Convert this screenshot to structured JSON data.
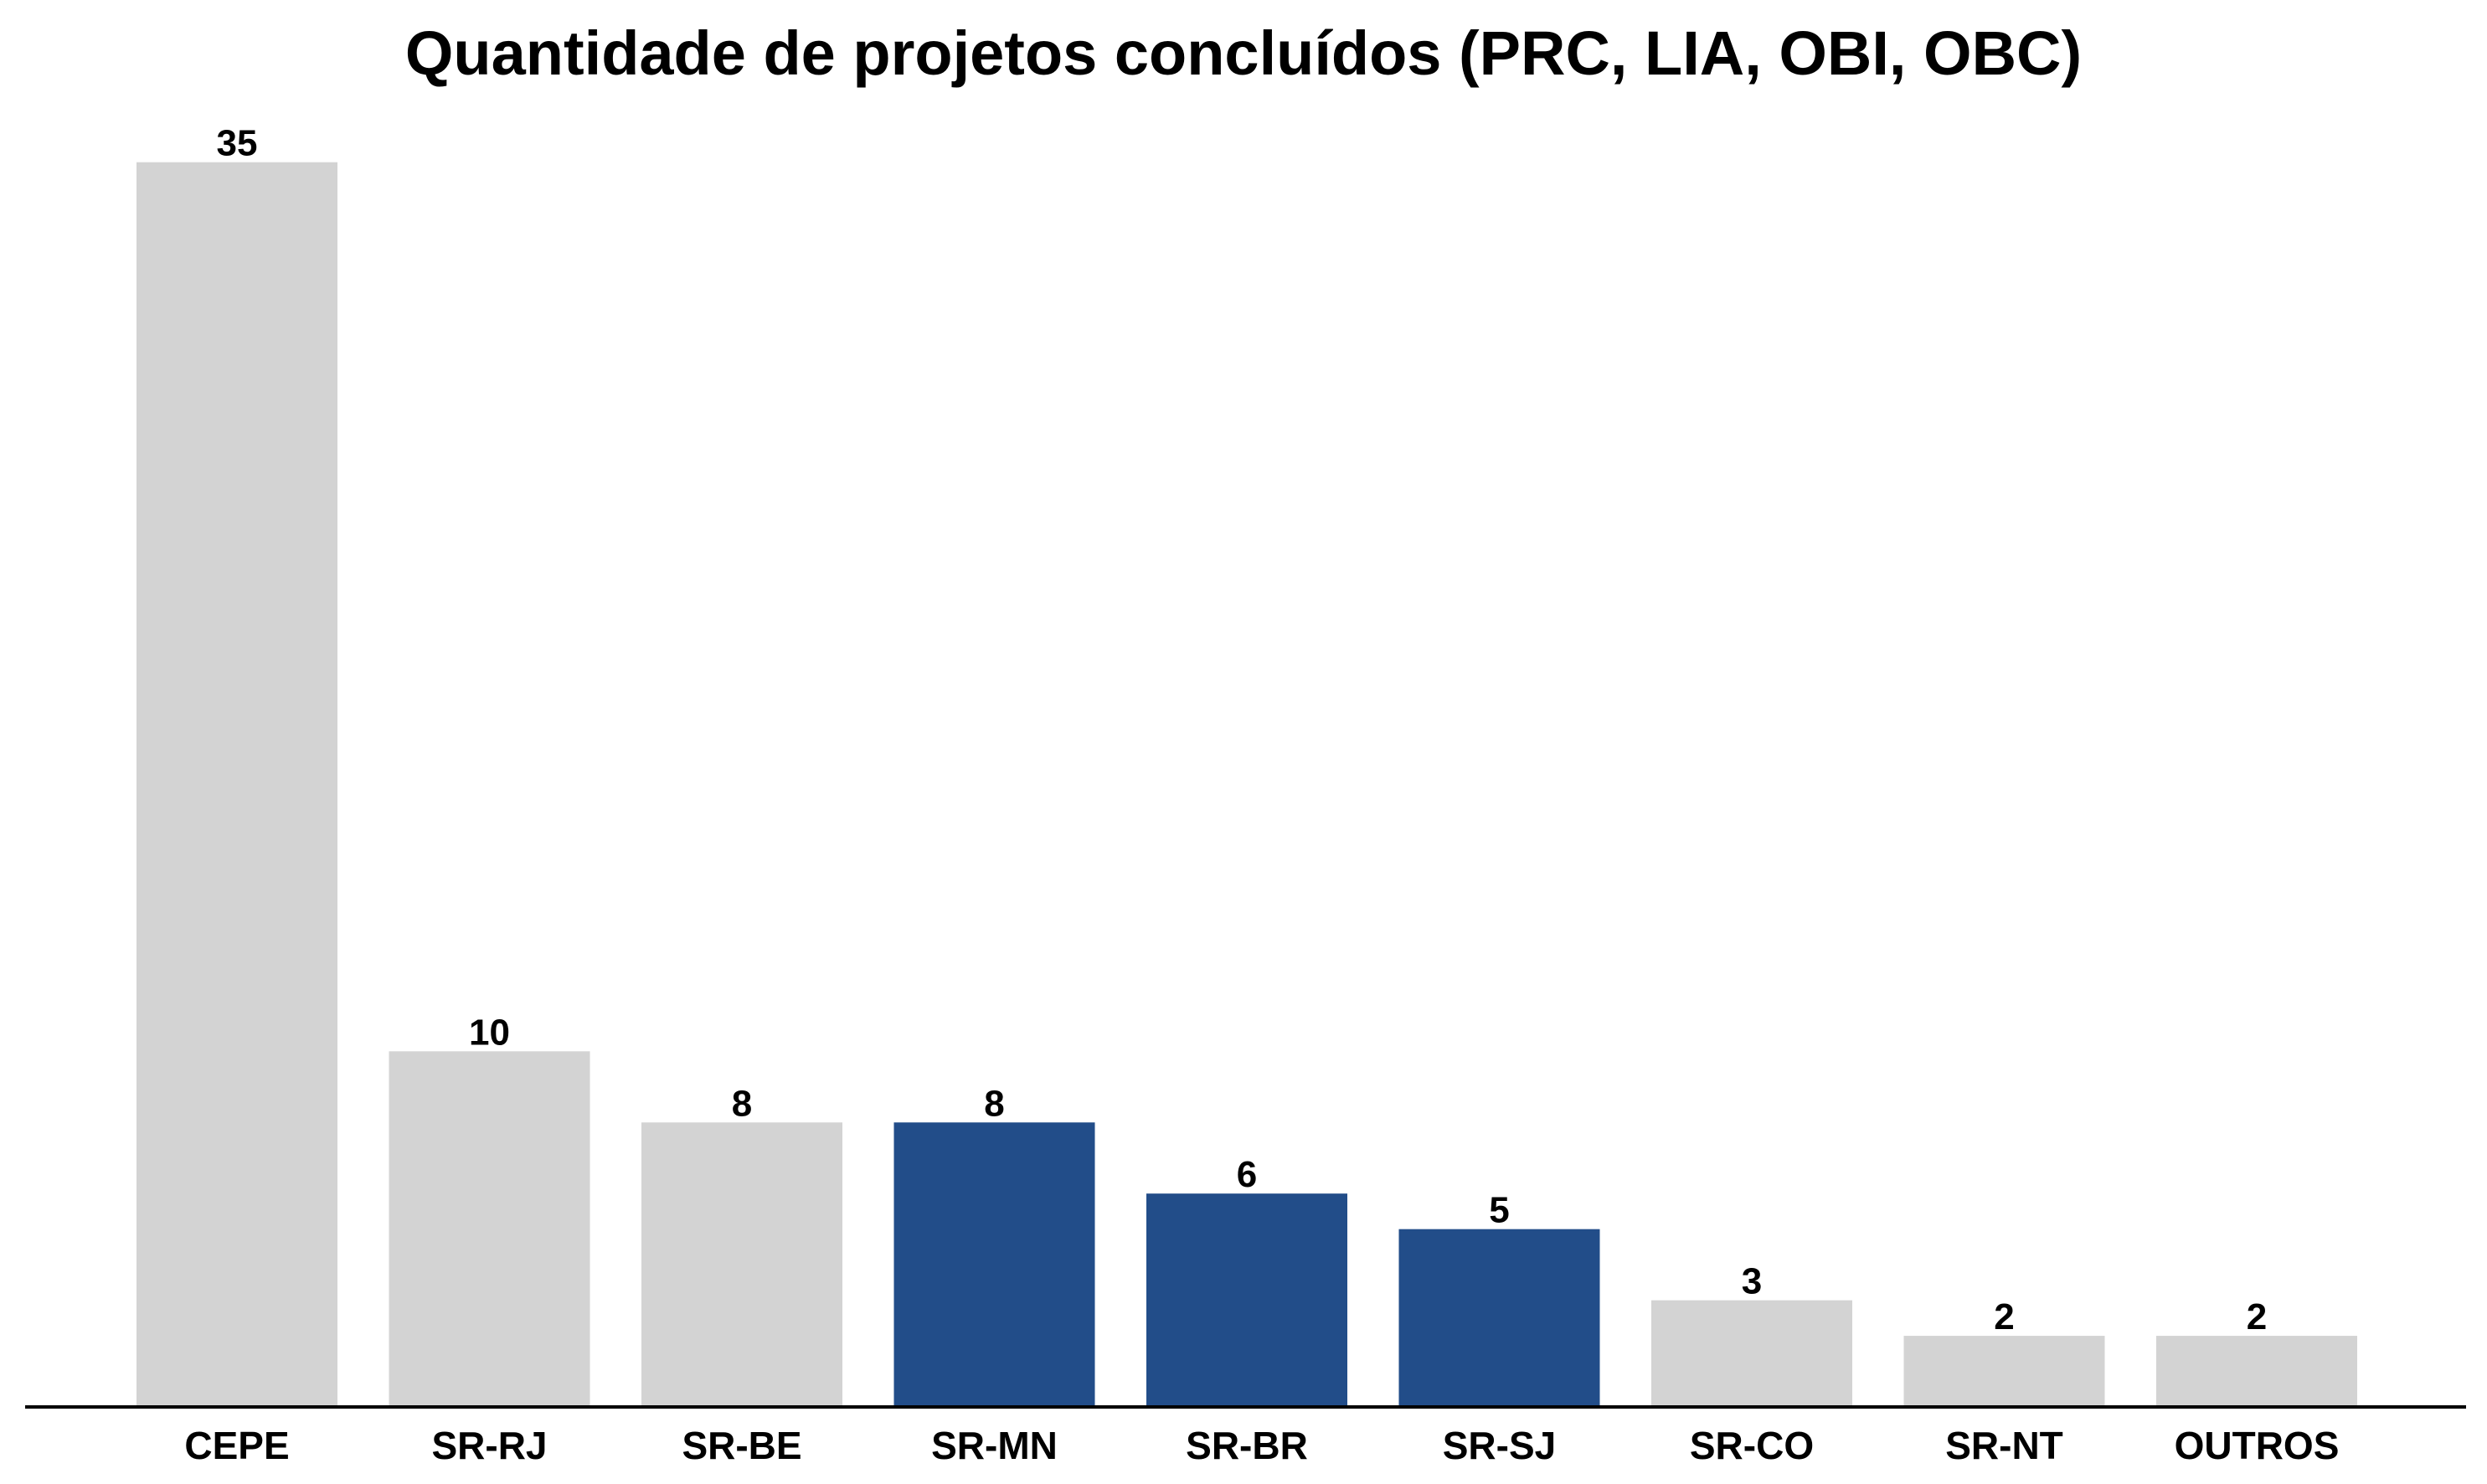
{
  "chart_data": {
    "type": "bar",
    "title": "Quantidade de projetos concluídos (PRC, LIA, OBI, OBC)",
    "xlabel": "",
    "ylabel": "",
    "categories": [
      "CEPE",
      "SR-RJ",
      "SR-BE",
      "SR-MN",
      "SR-BR",
      "SR-SJ",
      "SR-CO",
      "SR-NT",
      "OUTROS"
    ],
    "values": [
      35,
      10,
      8,
      8,
      6,
      5,
      3,
      2,
      2
    ],
    "data_labels": [
      "35",
      "10",
      "8",
      "8",
      "6",
      "5",
      "3",
      "2",
      "2"
    ],
    "highlighted": [
      false,
      false,
      false,
      true,
      true,
      true,
      false,
      false,
      false
    ],
    "ylim": [
      0,
      36.5
    ],
    "grid": false,
    "legend": "none",
    "colors": {
      "default_bar": "#d3d3d3",
      "highlight_bar": "#224d89",
      "axis": "#000000",
      "text": "#000000"
    }
  }
}
